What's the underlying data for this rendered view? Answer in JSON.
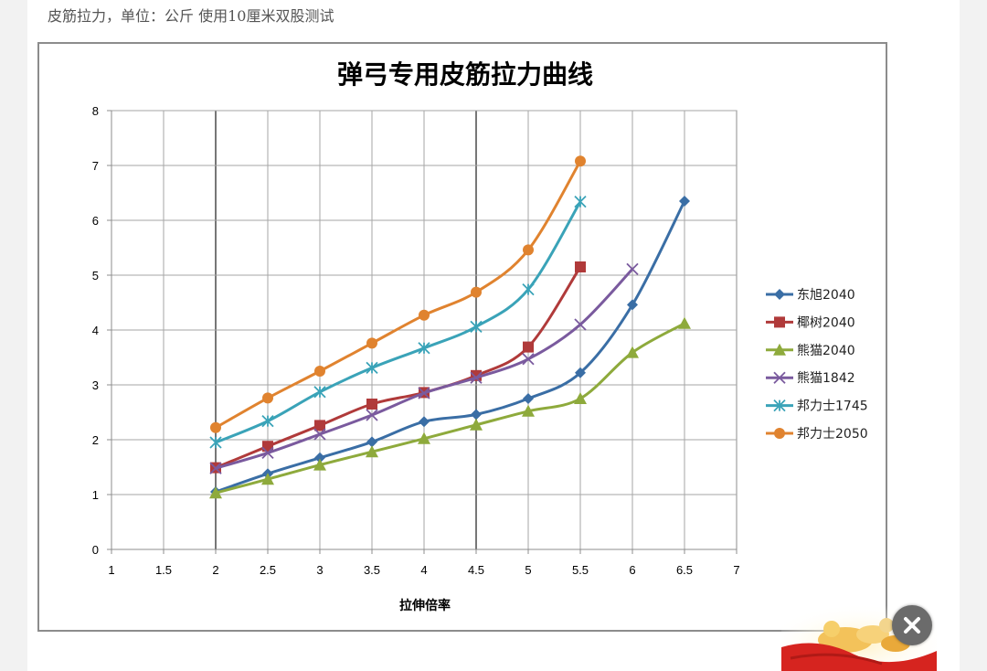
{
  "caption": "皮筋拉力，单位：公斤  使用10厘米双股测试",
  "colors": {
    "東旭2040": "#3a6ea5",
    "椰树2040": "#b03a3a",
    "熊猫2040": "#8eaa3c",
    "熊猫1842": "#7a5a9e",
    "邦力士1745": "#3aa3b8",
    "邦力士2050": "#e0832f"
  },
  "chart_data": {
    "type": "line",
    "title": "弹弓专用皮筋拉力曲线",
    "xlabel": "拉伸倍率",
    "ylabel": "",
    "xlim": [
      1,
      7
    ],
    "ylim": [
      0,
      8
    ],
    "x_ticks": [
      "1",
      "1.5",
      "2",
      "2.5",
      "3",
      "3.5",
      "4",
      "4.5",
      "5",
      "5.5",
      "6",
      "6.5",
      "7"
    ],
    "y_ticks": [
      "0",
      "1",
      "2",
      "3",
      "4",
      "5",
      "6",
      "7",
      "8"
    ],
    "grid": true,
    "legend_position": "right",
    "series": [
      {
        "name": "东旭2040",
        "marker": "diamond",
        "color": "#3a6ea5",
        "x": [
          2,
          2.5,
          3,
          3.5,
          4,
          4.5,
          5,
          5.5,
          6,
          6.5
        ],
        "y": [
          1.05,
          1.38,
          1.67,
          1.96,
          2.33,
          2.46,
          2.75,
          3.22,
          4.46,
          6.35
        ]
      },
      {
        "name": "椰树2040",
        "marker": "square",
        "color": "#b03a3a",
        "x": [
          2,
          2.5,
          3,
          3.5,
          4,
          4.5,
          5,
          5.5
        ],
        "y": [
          1.49,
          1.88,
          2.26,
          2.65,
          2.86,
          3.17,
          3.69,
          5.15
        ]
      },
      {
        "name": "熊猫2040",
        "marker": "triangle",
        "color": "#8eaa3c",
        "x": [
          2,
          2.5,
          3,
          3.5,
          4,
          4.5,
          5,
          5.5,
          6,
          6.5
        ],
        "y": [
          1.03,
          1.28,
          1.54,
          1.78,
          2.02,
          2.27,
          2.52,
          2.75,
          3.59,
          4.12
        ]
      },
      {
        "name": "熊猫1842",
        "marker": "x",
        "color": "#7a5a9e",
        "x": [
          2,
          2.5,
          3,
          3.5,
          4,
          4.5,
          5,
          5.5,
          6
        ],
        "y": [
          1.48,
          1.76,
          2.1,
          2.45,
          2.85,
          3.13,
          3.47,
          4.1,
          5.11
        ]
      },
      {
        "name": "邦力士1745",
        "marker": "asterisk",
        "color": "#3aa3b8",
        "x": [
          2,
          2.5,
          3,
          3.5,
          4,
          4.5,
          5,
          5.5
        ],
        "y": [
          1.95,
          2.34,
          2.87,
          3.31,
          3.67,
          4.06,
          4.74,
          6.34
        ]
      },
      {
        "name": "邦力士2050",
        "marker": "circle",
        "color": "#e0832f",
        "x": [
          2,
          2.5,
          3,
          3.5,
          4,
          4.5,
          5,
          5.5
        ],
        "y": [
          2.22,
          2.76,
          3.25,
          3.76,
          4.27,
          4.69,
          5.46,
          7.08
        ]
      }
    ]
  },
  "close_button": {
    "label": "×"
  }
}
